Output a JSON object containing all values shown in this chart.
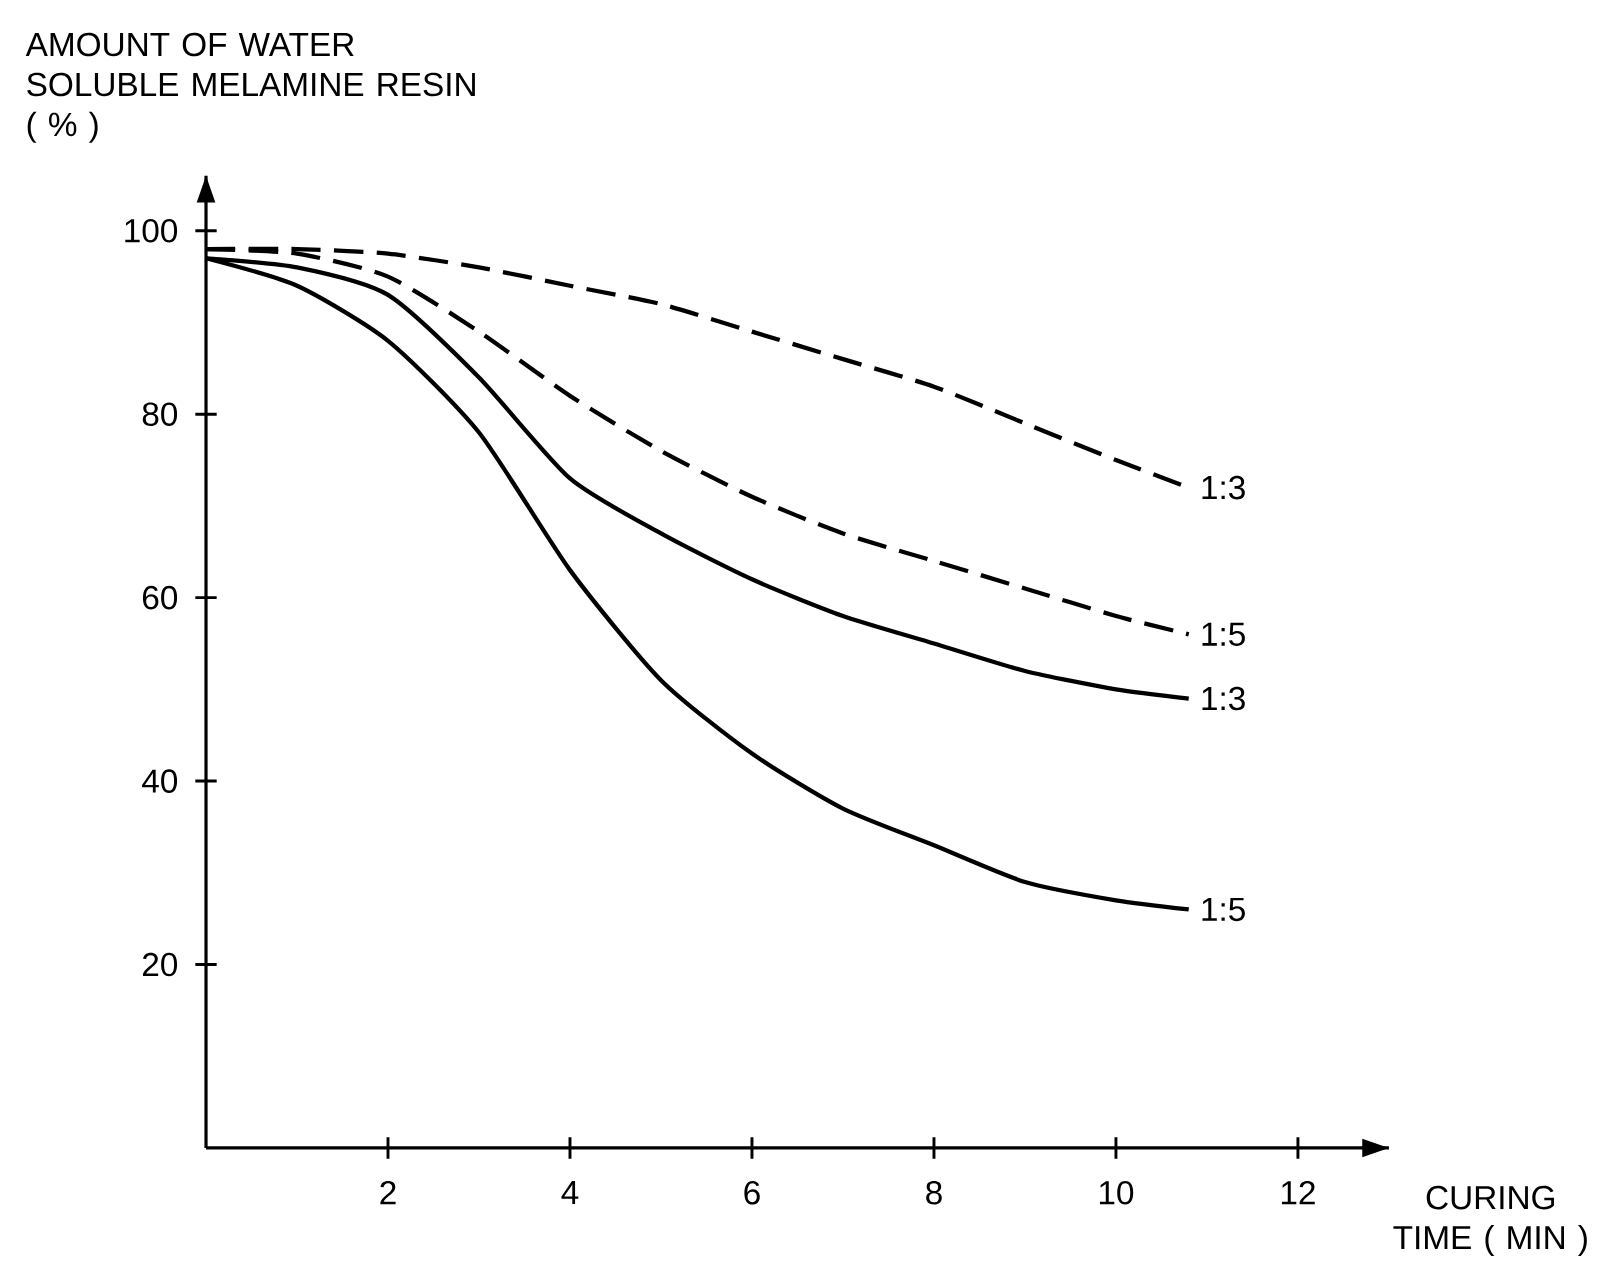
{
  "chart_data": {
    "type": "line",
    "xlabel": "CURING TIME ( MIN )",
    "ylabel": "AMOUNT OF WATER SOLUBLE MELAMINE RESIN ( % )",
    "x": [
      0,
      1,
      2,
      3,
      4,
      5,
      6,
      7,
      8,
      9,
      10,
      10.8
    ],
    "xlim": [
      0,
      13
    ],
    "ylim": [
      0,
      106
    ],
    "xticks": [
      2,
      4,
      6,
      8,
      10,
      12
    ],
    "yticks": [
      20,
      40,
      60,
      80,
      100
    ],
    "series": [
      {
        "name": "1:3",
        "color": "#000000",
        "line_style": "dashed",
        "values": [
          98,
          98,
          97.5,
          96,
          94,
          92,
          89,
          86,
          83,
          79,
          75,
          72
        ]
      },
      {
        "name": "1:5",
        "color": "#000000",
        "line_style": "dashed",
        "values": [
          98,
          97.5,
          95,
          89,
          82,
          76,
          71,
          67,
          64,
          61,
          58,
          56
        ]
      },
      {
        "name": "1:3",
        "color": "#000000",
        "line_style": "solid",
        "values": [
          97,
          96,
          93,
          84,
          73,
          67,
          62,
          58,
          55,
          52,
          50,
          49
        ]
      },
      {
        "name": "1:5",
        "color": "#000000",
        "line_style": "solid",
        "values": [
          97,
          94,
          88,
          78,
          63,
          51,
          43,
          37,
          33,
          29,
          27,
          26
        ]
      }
    ]
  }
}
